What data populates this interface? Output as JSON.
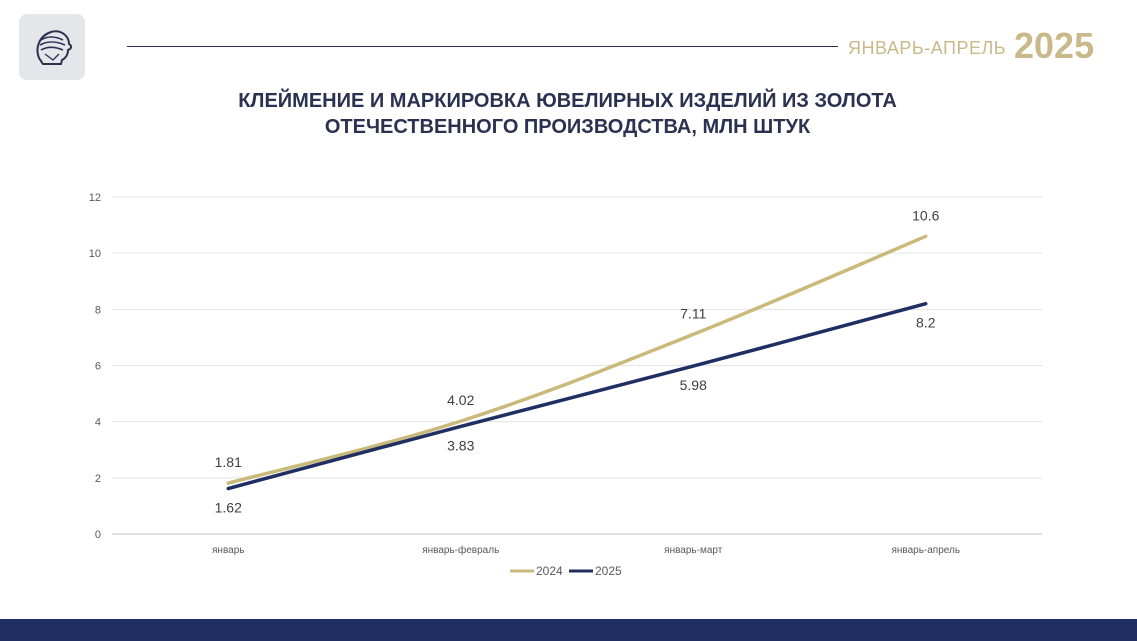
{
  "header": {
    "period": "ЯНВАРЬ-АПРЕЛЬ",
    "year": "2025"
  },
  "chart_data": {
    "type": "line",
    "title_lines": [
      "КЛЕЙМЕНИЕ И МАРКИРОВКА ЮВЕЛИРНЫХ ИЗДЕЛИЙ ИЗ ЗОЛОТА",
      "ОТЕЧЕСТВЕННОГО ПРОИЗВОДСТВА, МЛН ШТУК"
    ],
    "categories": [
      "январь",
      "январь-февраль",
      "январь-март",
      "январь-апрель"
    ],
    "y_ticks": [
      "0",
      "2",
      "4",
      "6",
      "8",
      "10",
      "12"
    ],
    "ylim": [
      0,
      12
    ],
    "grid": true,
    "legend_position": "bottom",
    "series": [
      {
        "name": "2024",
        "values": [
          1.81,
          4.02,
          7.11,
          10.6
        ],
        "labels": [
          "1.81",
          "4.02",
          "7.11",
          "10.6"
        ],
        "color": "#c9b97a",
        "label_position": "above"
      },
      {
        "name": "2025",
        "values": [
          1.62,
          3.83,
          5.98,
          8.2
        ],
        "labels": [
          "1.62",
          "3.83",
          "5.98",
          "8.2"
        ],
        "color": "#1f2f63",
        "label_position": "below"
      }
    ]
  }
}
